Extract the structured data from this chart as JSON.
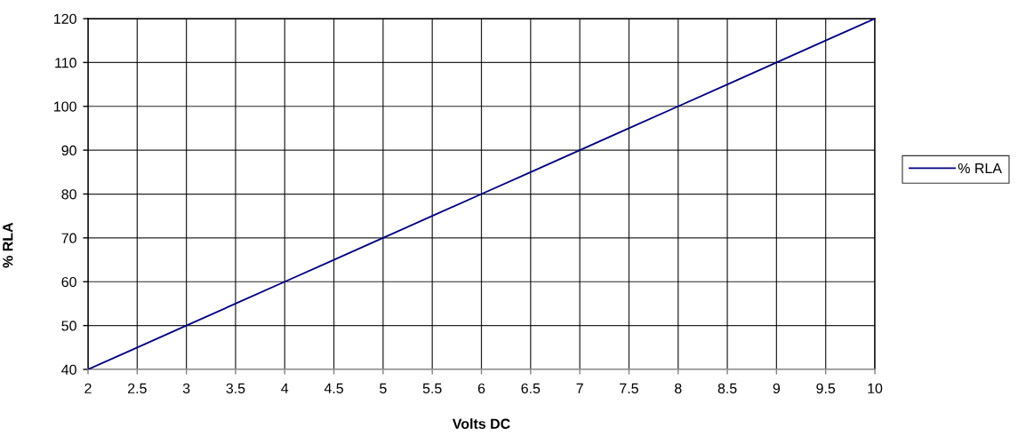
{
  "chart_data": {
    "type": "line",
    "xlabel": "Volts DC",
    "ylabel": "% RLA",
    "x": [
      2,
      2.5,
      3,
      3.5,
      4,
      4.5,
      5,
      5.5,
      6,
      6.5,
      7,
      7.5,
      8,
      8.5,
      9,
      9.5,
      10
    ],
    "series": [
      {
        "name": "% RLA",
        "color": "#000080",
        "values": [
          40,
          45,
          50,
          55,
          60,
          65,
          70,
          75,
          80,
          85,
          90,
          95,
          100,
          105,
          110,
          115,
          120
        ]
      }
    ],
    "xlim": [
      2,
      10
    ],
    "ylim": [
      40,
      120
    ],
    "xticks": [
      2,
      2.5,
      3,
      3.5,
      4,
      4.5,
      5,
      5.5,
      6,
      6.5,
      7,
      7.5,
      8,
      8.5,
      9,
      9.5,
      10
    ],
    "yticks": [
      40,
      50,
      60,
      70,
      80,
      90,
      100,
      110,
      120
    ],
    "grid": true,
    "legend": "right",
    "line_style": "solid"
  }
}
